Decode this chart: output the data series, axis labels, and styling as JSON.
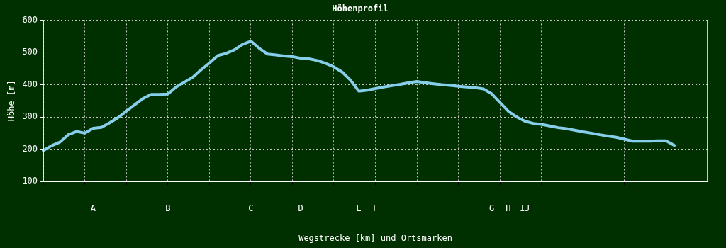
{
  "chart_data": {
    "type": "line",
    "title": "Höhenprofil",
    "xlabel": "Wegstrecke [km] und Ortsmarken",
    "ylabel": "Höhe [m]",
    "categories": [
      null,
      null,
      null,
      null,
      null,
      null,
      "A",
      null,
      null,
      null,
      null,
      null,
      null,
      null,
      null,
      "B",
      null,
      null,
      null,
      null,
      null,
      null,
      null,
      null,
      null,
      "C",
      null,
      null,
      null,
      null,
      null,
      "D",
      null,
      null,
      null,
      null,
      null,
      null,
      "E",
      null,
      "F",
      null,
      null,
      null,
      null,
      null,
      null,
      null,
      null,
      null,
      null,
      null,
      null,
      null,
      "G",
      null,
      "H",
      null,
      "IJ",
      null,
      null,
      null,
      null,
      null,
      null,
      null,
      null,
      null,
      null,
      null,
      null,
      null,
      null,
      null,
      null,
      null,
      null,
      null,
      null,
      null,
      null
    ],
    "series": [
      {
        "color": "#87ceeb",
        "values": [
          196,
          211,
          222,
          245,
          255,
          250,
          265,
          268,
          282,
          298,
          318,
          338,
          357,
          370,
          370,
          371,
          393,
          408,
          423,
          446,
          467,
          490,
          497,
          508,
          525,
          535,
          513,
          495,
          492,
          489,
          487,
          482,
          480,
          475,
          466,
          455,
          439,
          414,
          380,
          383,
          388,
          393,
          397,
          401,
          406,
          410,
          406,
          403,
          400,
          398,
          395,
          393,
          391,
          387,
          372,
          345,
          318,
          300,
          287,
          280,
          277,
          272,
          267,
          264,
          259,
          254,
          250,
          245,
          241,
          237,
          231,
          225,
          225,
          225,
          226,
          226,
          212,
          null,
          null,
          null,
          null
        ]
      }
    ],
    "ylim": [
      100,
      600
    ],
    "yticks": [
      100,
      200,
      300,
      400,
      500,
      600
    ],
    "grid": true,
    "marker": "none",
    "line_style": "solid"
  }
}
